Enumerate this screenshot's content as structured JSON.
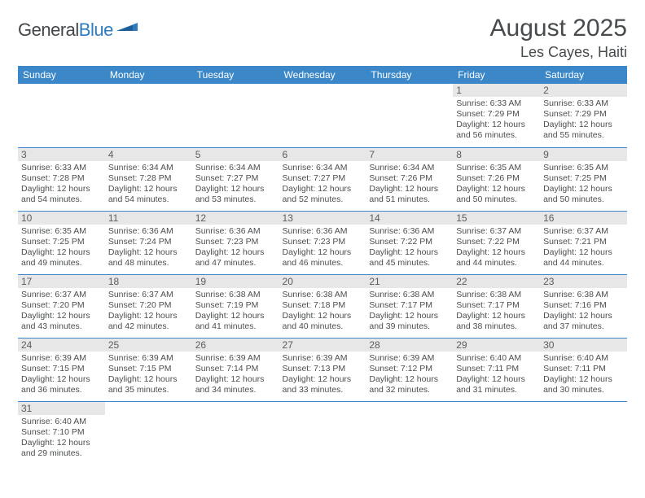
{
  "brand": {
    "part1": "General",
    "part2": "Blue"
  },
  "title": "August 2025",
  "location": "Les Cayes, Haiti",
  "colors": {
    "header_bg": "#3b87c8",
    "header_text": "#ffffff",
    "daynum_bg": "#e7e7e7",
    "text": "#4b4e51",
    "rule": "#3b87c8"
  },
  "dow": [
    "Sunday",
    "Monday",
    "Tuesday",
    "Wednesday",
    "Thursday",
    "Friday",
    "Saturday"
  ],
  "first_dow": 5,
  "days": [
    {
      "n": 1,
      "sr": "6:33 AM",
      "ss": "7:29 PM",
      "dl": "12 hours and 56 minutes."
    },
    {
      "n": 2,
      "sr": "6:33 AM",
      "ss": "7:29 PM",
      "dl": "12 hours and 55 minutes."
    },
    {
      "n": 3,
      "sr": "6:33 AM",
      "ss": "7:28 PM",
      "dl": "12 hours and 54 minutes."
    },
    {
      "n": 4,
      "sr": "6:34 AM",
      "ss": "7:28 PM",
      "dl": "12 hours and 54 minutes."
    },
    {
      "n": 5,
      "sr": "6:34 AM",
      "ss": "7:27 PM",
      "dl": "12 hours and 53 minutes."
    },
    {
      "n": 6,
      "sr": "6:34 AM",
      "ss": "7:27 PM",
      "dl": "12 hours and 52 minutes."
    },
    {
      "n": 7,
      "sr": "6:34 AM",
      "ss": "7:26 PM",
      "dl": "12 hours and 51 minutes."
    },
    {
      "n": 8,
      "sr": "6:35 AM",
      "ss": "7:26 PM",
      "dl": "12 hours and 50 minutes."
    },
    {
      "n": 9,
      "sr": "6:35 AM",
      "ss": "7:25 PM",
      "dl": "12 hours and 50 minutes."
    },
    {
      "n": 10,
      "sr": "6:35 AM",
      "ss": "7:25 PM",
      "dl": "12 hours and 49 minutes."
    },
    {
      "n": 11,
      "sr": "6:36 AM",
      "ss": "7:24 PM",
      "dl": "12 hours and 48 minutes."
    },
    {
      "n": 12,
      "sr": "6:36 AM",
      "ss": "7:23 PM",
      "dl": "12 hours and 47 minutes."
    },
    {
      "n": 13,
      "sr": "6:36 AM",
      "ss": "7:23 PM",
      "dl": "12 hours and 46 minutes."
    },
    {
      "n": 14,
      "sr": "6:36 AM",
      "ss": "7:22 PM",
      "dl": "12 hours and 45 minutes."
    },
    {
      "n": 15,
      "sr": "6:37 AM",
      "ss": "7:22 PM",
      "dl": "12 hours and 44 minutes."
    },
    {
      "n": 16,
      "sr": "6:37 AM",
      "ss": "7:21 PM",
      "dl": "12 hours and 44 minutes."
    },
    {
      "n": 17,
      "sr": "6:37 AM",
      "ss": "7:20 PM",
      "dl": "12 hours and 43 minutes."
    },
    {
      "n": 18,
      "sr": "6:37 AM",
      "ss": "7:20 PM",
      "dl": "12 hours and 42 minutes."
    },
    {
      "n": 19,
      "sr": "6:38 AM",
      "ss": "7:19 PM",
      "dl": "12 hours and 41 minutes."
    },
    {
      "n": 20,
      "sr": "6:38 AM",
      "ss": "7:18 PM",
      "dl": "12 hours and 40 minutes."
    },
    {
      "n": 21,
      "sr": "6:38 AM",
      "ss": "7:17 PM",
      "dl": "12 hours and 39 minutes."
    },
    {
      "n": 22,
      "sr": "6:38 AM",
      "ss": "7:17 PM",
      "dl": "12 hours and 38 minutes."
    },
    {
      "n": 23,
      "sr": "6:38 AM",
      "ss": "7:16 PM",
      "dl": "12 hours and 37 minutes."
    },
    {
      "n": 24,
      "sr": "6:39 AM",
      "ss": "7:15 PM",
      "dl": "12 hours and 36 minutes."
    },
    {
      "n": 25,
      "sr": "6:39 AM",
      "ss": "7:15 PM",
      "dl": "12 hours and 35 minutes."
    },
    {
      "n": 26,
      "sr": "6:39 AM",
      "ss": "7:14 PM",
      "dl": "12 hours and 34 minutes."
    },
    {
      "n": 27,
      "sr": "6:39 AM",
      "ss": "7:13 PM",
      "dl": "12 hours and 33 minutes."
    },
    {
      "n": 28,
      "sr": "6:39 AM",
      "ss": "7:12 PM",
      "dl": "12 hours and 32 minutes."
    },
    {
      "n": 29,
      "sr": "6:40 AM",
      "ss": "7:11 PM",
      "dl": "12 hours and 31 minutes."
    },
    {
      "n": 30,
      "sr": "6:40 AM",
      "ss": "7:11 PM",
      "dl": "12 hours and 30 minutes."
    },
    {
      "n": 31,
      "sr": "6:40 AM",
      "ss": "7:10 PM",
      "dl": "12 hours and 29 minutes."
    }
  ],
  "labels": {
    "sunrise": "Sunrise:",
    "sunset": "Sunset:",
    "daylight": "Daylight:"
  }
}
